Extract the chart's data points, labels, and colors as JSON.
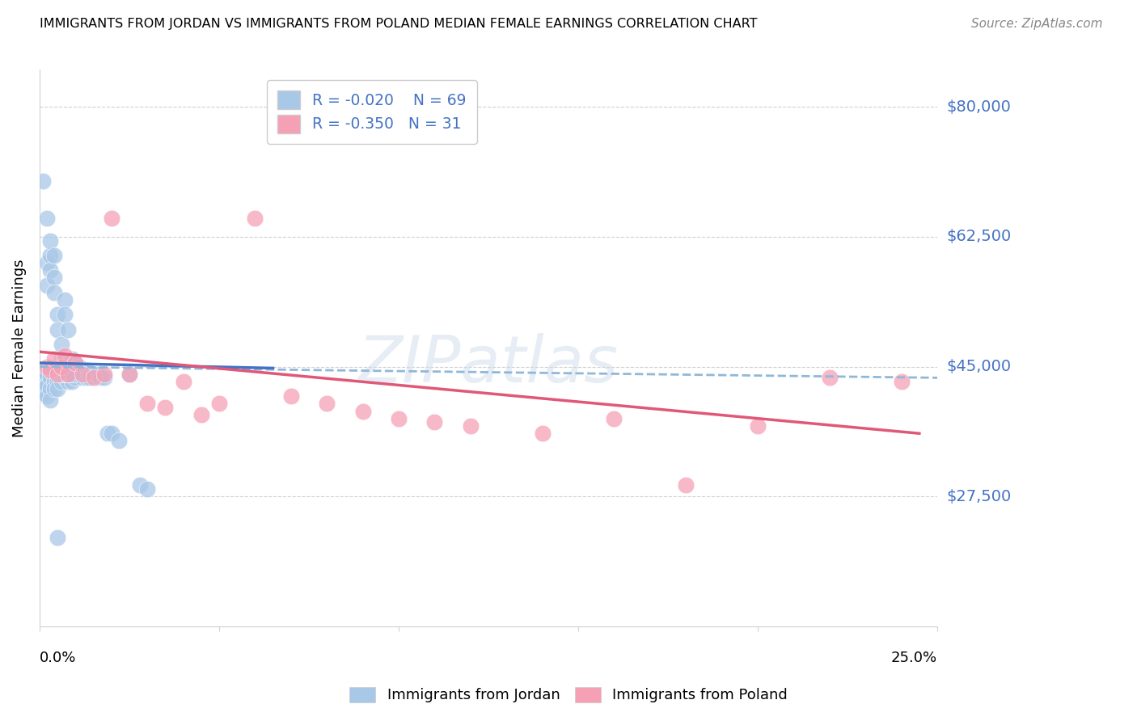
{
  "title": "IMMIGRANTS FROM JORDAN VS IMMIGRANTS FROM POLAND MEDIAN FEMALE EARNINGS CORRELATION CHART",
  "source": "Source: ZipAtlas.com",
  "ylabel": "Median Female Earnings",
  "ytick_labels": [
    "$27,500",
    "$45,000",
    "$62,500",
    "$80,000"
  ],
  "ytick_values": [
    27500,
    45000,
    62500,
    80000
  ],
  "ylim": [
    10000,
    85000
  ],
  "xlim": [
    0.0,
    0.25
  ],
  "jordan_R": "-0.020",
  "jordan_N": "69",
  "poland_R": "-0.350",
  "poland_N": "31",
  "jordan_color": "#a8c8e8",
  "poland_color": "#f5a0b5",
  "jordan_line_color": "#4472c4",
  "poland_line_color": "#e05878",
  "jordan_dashed_color": "#90b8d8",
  "background_color": "#ffffff",
  "jordan_x": [
    0.001,
    0.001,
    0.001,
    0.001,
    0.002,
    0.002,
    0.002,
    0.002,
    0.002,
    0.003,
    0.003,
    0.003,
    0.003,
    0.003,
    0.003,
    0.004,
    0.004,
    0.004,
    0.004,
    0.004,
    0.005,
    0.005,
    0.005,
    0.005,
    0.005,
    0.006,
    0.006,
    0.006,
    0.006,
    0.007,
    0.007,
    0.007,
    0.007,
    0.008,
    0.008,
    0.008,
    0.009,
    0.009,
    0.009,
    0.01,
    0.01,
    0.01,
    0.011,
    0.011,
    0.012,
    0.012,
    0.013,
    0.013,
    0.014,
    0.014,
    0.015,
    0.016,
    0.017,
    0.018,
    0.019,
    0.02,
    0.022,
    0.025,
    0.028,
    0.03,
    0.001,
    0.002,
    0.003,
    0.004,
    0.005,
    0.006,
    0.007,
    0.008,
    0.009
  ],
  "jordan_y": [
    44000,
    43000,
    42000,
    41500,
    59000,
    56000,
    44000,
    42500,
    41000,
    60000,
    58000,
    44500,
    43500,
    42000,
    40500,
    57000,
    55000,
    44000,
    43000,
    42000,
    52000,
    50000,
    44000,
    43000,
    42000,
    48000,
    46000,
    44000,
    43000,
    54000,
    52000,
    44500,
    43500,
    50000,
    44000,
    43000,
    46000,
    44000,
    43000,
    45500,
    44000,
    43500,
    45000,
    44000,
    44500,
    43500,
    44500,
    43500,
    44000,
    43500,
    44000,
    44000,
    43500,
    43500,
    36000,
    36000,
    35000,
    44000,
    29000,
    28500,
    70000,
    65000,
    62000,
    60000,
    22000,
    44000,
    44000,
    44000,
    44000
  ],
  "poland_x": [
    0.002,
    0.003,
    0.004,
    0.005,
    0.006,
    0.007,
    0.008,
    0.01,
    0.012,
    0.015,
    0.018,
    0.02,
    0.025,
    0.03,
    0.035,
    0.04,
    0.045,
    0.05,
    0.06,
    0.07,
    0.08,
    0.09,
    0.1,
    0.11,
    0.12,
    0.14,
    0.16,
    0.18,
    0.2,
    0.22,
    0.24
  ],
  "poland_y": [
    45000,
    44500,
    46000,
    44000,
    45000,
    46500,
    44000,
    45500,
    44000,
    43500,
    44000,
    65000,
    44000,
    40000,
    39500,
    43000,
    38500,
    40000,
    65000,
    41000,
    40000,
    39000,
    38000,
    37500,
    37000,
    36000,
    38000,
    29000,
    37000,
    43500,
    43000
  ]
}
